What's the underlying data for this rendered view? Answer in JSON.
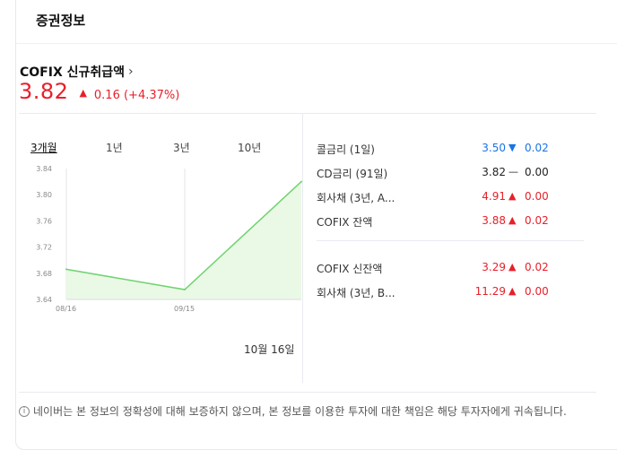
{
  "header": {
    "title": "증권정보"
  },
  "index": {
    "name": "COFIX 신규취급액",
    "chevron": "›",
    "price": "3.82",
    "up_symbol": "▲",
    "change": "0.16 (+4.37%)"
  },
  "tabs": [
    {
      "label": "3개월",
      "active": true
    },
    {
      "label": "1년",
      "active": false
    },
    {
      "label": "3년",
      "active": false
    },
    {
      "label": "10년",
      "active": false
    }
  ],
  "chart_data": {
    "type": "area",
    "y_ticks": [
      "3.84",
      "3.80",
      "3.76",
      "3.72",
      "3.68",
      "3.64"
    ],
    "ylim": [
      3.64,
      3.84
    ],
    "x_ticks": [
      "08/16",
      "09/15"
    ],
    "x": [
      "08/16",
      "09/15",
      "10/16"
    ],
    "values": [
      3.686,
      3.655,
      3.82
    ],
    "line_color": "#6fd36f",
    "fill_color": "#eaf9e6",
    "grid": false
  },
  "date_label": "10월 16일",
  "rates_group1": [
    {
      "name": "콜금리 (1일)",
      "value": "3.50",
      "value_color": "blue",
      "symbol": "▼",
      "change": "0.02",
      "change_color": "blue"
    },
    {
      "name": "CD금리 (91일)",
      "value": "3.82",
      "value_color": "black",
      "symbol": "—",
      "change": "0.00",
      "change_color": "black"
    },
    {
      "name": "회사채 (3년, A...",
      "value": "4.91",
      "value_color": "red",
      "symbol": "▲",
      "change": "0.00",
      "change_color": "red"
    },
    {
      "name": "COFIX 잔액",
      "value": "3.88",
      "value_color": "red",
      "symbol": "▲",
      "change": "0.02",
      "change_color": "red"
    }
  ],
  "rates_group2": [
    {
      "name": "COFIX 신잔액",
      "value": "3.29",
      "value_color": "red",
      "symbol": "▲",
      "change": "0.02",
      "change_color": "red"
    },
    {
      "name": "회사채 (3년, B...",
      "value": "11.29",
      "value_color": "red",
      "symbol": "▲",
      "change": "0.00",
      "change_color": "red"
    }
  ],
  "disclaimer": {
    "icon": "info-icon",
    "text": "네이버는 본 정보의 정확성에 대해 보증하지 않으며, 본 정보를 이용한 투자에 대한 책임은 해당 투자자에게 귀속됩니다."
  }
}
